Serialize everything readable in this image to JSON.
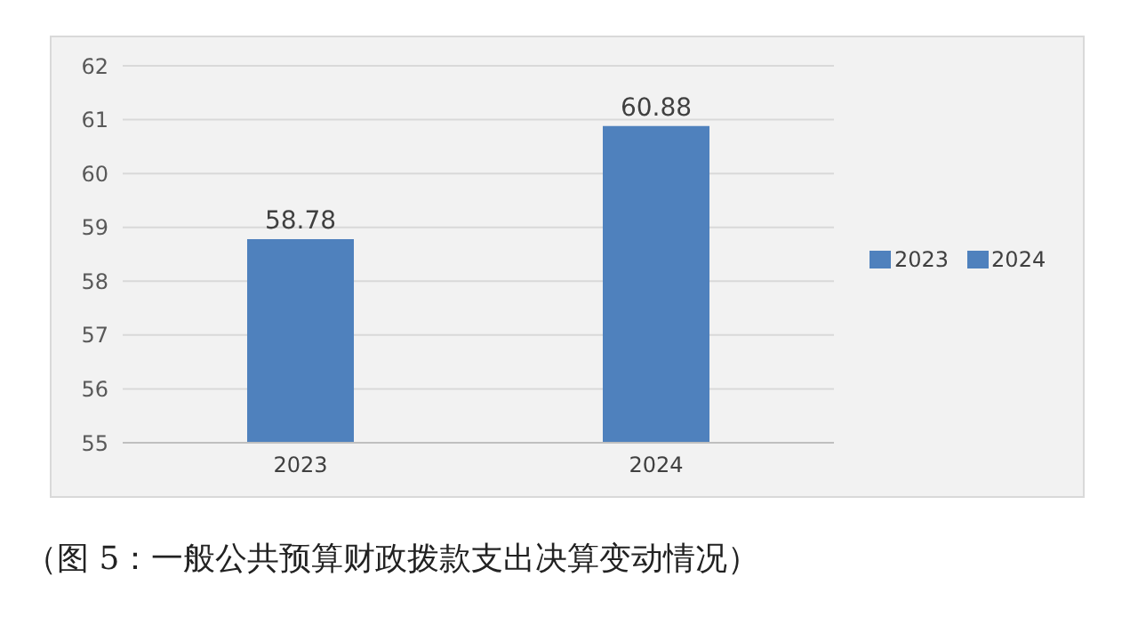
{
  "chart_data": {
    "type": "bar",
    "title": "（图 5：一般公共预算财政拨款支出决算变动情况）",
    "categories": [
      "2023",
      "2024"
    ],
    "series": [
      {
        "name": "2023",
        "color": "#4f81bd",
        "values": [
          58.78,
          null
        ]
      },
      {
        "name": "2024",
        "color": "#4f81bd",
        "values": [
          null,
          60.88
        ]
      }
    ],
    "stacked": true,
    "ylim": [
      55,
      62
    ],
    "yticks": [
      55,
      56,
      57,
      58,
      59,
      60,
      61,
      62
    ],
    "grid": "y",
    "legend": "right",
    "data_labels": true
  }
}
